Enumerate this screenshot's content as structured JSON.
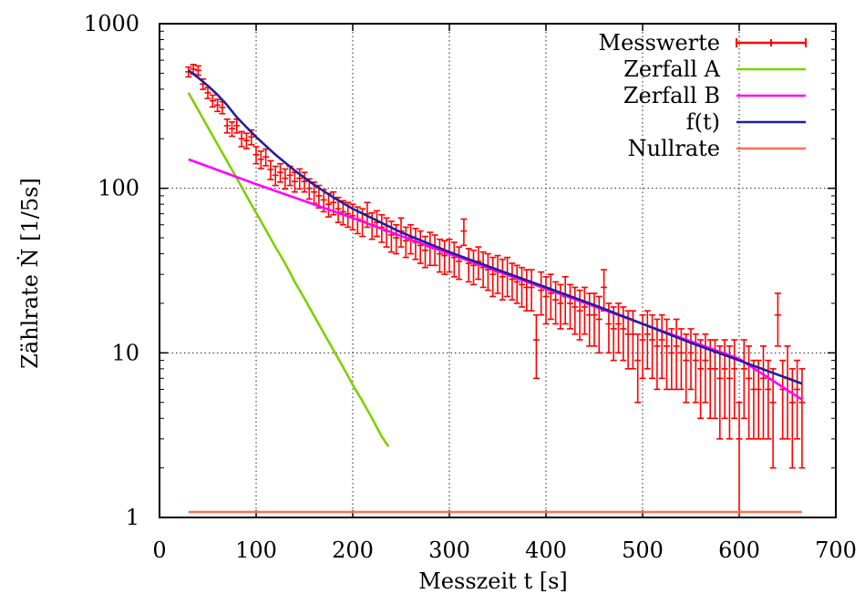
{
  "chart_data": {
    "type": "scatter",
    "title": "",
    "xlabel": "Messzeit t [s]",
    "ylabel": "Zählrate Ṅ [1/5s]",
    "xlim": [
      0,
      700
    ],
    "ylim": [
      1,
      1000
    ],
    "yscale": "log",
    "grid": true,
    "legend_position": "top-right",
    "x_ticks": [
      "0",
      "100",
      "200",
      "300",
      "400",
      "500",
      "600",
      "700"
    ],
    "y_ticks": [
      "1",
      "10",
      "100",
      "1000"
    ],
    "series": [
      {
        "name": "Messwerte",
        "kind": "errorbar",
        "color": "#ff0000",
        "x": [
          30,
          35,
          40,
          45,
          50,
          55,
          60,
          65,
          70,
          75,
          80,
          85,
          90,
          95,
          100,
          105,
          110,
          115,
          120,
          125,
          130,
          135,
          140,
          145,
          150,
          155,
          160,
          165,
          170,
          175,
          180,
          185,
          190,
          195,
          200,
          205,
          210,
          215,
          220,
          225,
          230,
          235,
          240,
          245,
          250,
          255,
          260,
          265,
          270,
          275,
          280,
          285,
          290,
          295,
          300,
          305,
          310,
          315,
          320,
          325,
          330,
          335,
          340,
          345,
          350,
          355,
          360,
          365,
          370,
          375,
          380,
          385,
          390,
          395,
          400,
          405,
          410,
          415,
          420,
          425,
          430,
          435,
          440,
          445,
          450,
          455,
          460,
          465,
          470,
          475,
          480,
          485,
          490,
          495,
          500,
          505,
          510,
          515,
          520,
          525,
          530,
          535,
          540,
          545,
          550,
          555,
          560,
          565,
          570,
          575,
          580,
          585,
          590,
          595,
          600,
          605,
          610,
          615,
          620,
          625,
          630,
          635,
          640,
          645,
          650,
          655,
          660,
          665
        ],
        "y": [
          510,
          530,
          520,
          430,
          380,
          340,
          320,
          310,
          240,
          230,
          240,
          200,
          195,
          205,
          160,
          150,
          155,
          130,
          120,
          125,
          115,
          120,
          110,
          115,
          110,
          100,
          95,
          90,
          85,
          80,
          82,
          75,
          72,
          70,
          68,
          65,
          63,
          70,
          60,
          62,
          58,
          55,
          52,
          50,
          55,
          48,
          50,
          47,
          45,
          42,
          44,
          43,
          40,
          39,
          40,
          38,
          36,
          55,
          35,
          34,
          36,
          33,
          32,
          30,
          31,
          29,
          30,
          28,
          27,
          26,
          25,
          25,
          12,
          24,
          22,
          23,
          21,
          20,
          22,
          20,
          19,
          18,
          19,
          17,
          17,
          16,
          25,
          15,
          14,
          15,
          14,
          13,
          13,
          9,
          12,
          13,
          12,
          11,
          12,
          11,
          10,
          11,
          10,
          9,
          10,
          9,
          8,
          9,
          8,
          8,
          7,
          8,
          7,
          8,
          3,
          8,
          7,
          6,
          6,
          7,
          6,
          5,
          17,
          6,
          7,
          5,
          6,
          5
        ],
        "err": [
          35,
          35,
          34,
          31,
          29,
          28,
          27,
          26,
          23,
          23,
          23,
          21,
          21,
          21,
          19,
          18,
          18,
          17,
          16,
          16,
          16,
          16,
          15,
          16,
          15,
          14,
          14,
          14,
          13,
          13,
          13,
          13,
          12,
          12,
          12,
          12,
          12,
          12,
          11,
          11,
          11,
          11,
          11,
          10,
          11,
          10,
          10,
          10,
          10,
          9,
          10,
          9,
          9,
          9,
          9,
          9,
          8,
          10,
          8,
          8,
          8,
          8,
          8,
          8,
          8,
          8,
          8,
          7,
          7,
          7,
          7,
          7,
          5,
          7,
          7,
          7,
          6,
          6,
          7,
          6,
          6,
          6,
          6,
          6,
          6,
          6,
          7,
          5,
          5,
          5,
          5,
          5,
          5,
          4,
          5,
          5,
          5,
          5,
          5,
          5,
          4,
          5,
          4,
          4,
          4,
          4,
          4,
          4,
          4,
          4,
          4,
          4,
          4,
          4,
          2,
          4,
          4,
          3,
          3,
          4,
          3,
          3,
          6,
          3,
          4,
          3,
          3,
          3
        ]
      },
      {
        "name": "Zerfall A",
        "kind": "line",
        "color": "#7fd000",
        "x": [
          30,
          40,
          50,
          60,
          70,
          80,
          90,
          100,
          110,
          120,
          130,
          140,
          150,
          160,
          170,
          180,
          190,
          200,
          210,
          220,
          230,
          237
        ],
        "y": [
          380,
          299,
          235,
          185,
          146,
          115,
          90,
          71,
          56,
          44,
          35,
          27,
          21.4,
          16.8,
          13.2,
          10.4,
          8.2,
          6.4,
          5.1,
          4.0,
          3.1,
          2.7
        ]
      },
      {
        "name": "Zerfall B",
        "kind": "line",
        "color": "#ff00ff",
        "x": [
          30,
          100,
          200,
          300,
          400,
          500,
          600,
          665
        ],
        "y": [
          150,
          106,
          66,
          40,
          24.5,
          15,
          9.2,
          5.2
        ]
      },
      {
        "name": "f(t)",
        "kind": "line",
        "color": "#20209a",
        "x": [
          30,
          40,
          50,
          60,
          70,
          80,
          90,
          100,
          120,
          140,
          160,
          180,
          200,
          250,
          300,
          350,
          400,
          450,
          500,
          550,
          600,
          665
        ],
        "y": [
          520,
          470,
          420,
          370,
          320,
          270,
          235,
          205,
          160,
          128,
          105,
          88,
          75,
          54,
          41,
          32,
          25,
          19.5,
          15,
          11.5,
          9,
          6.5
        ]
      },
      {
        "name": "Nullrate",
        "kind": "line",
        "color": "#ff7050",
        "x": [
          30,
          665
        ],
        "y": [
          1.08,
          1.08
        ]
      }
    ]
  }
}
